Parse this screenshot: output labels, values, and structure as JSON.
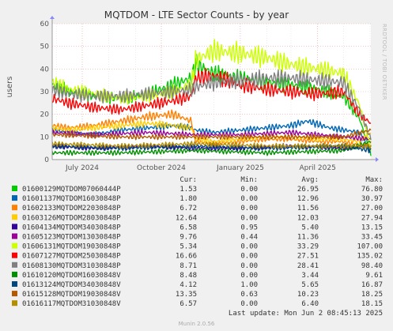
{
  "chart_data": {
    "type": "line",
    "title": "MQTDOM - LTE Sector Counts - by year",
    "ylabel": "users",
    "ylim": [
      0,
      60
    ],
    "yticks": [
      0,
      10,
      20,
      30,
      40,
      50,
      60
    ],
    "xlim": [
      "2024-05-27",
      "2025-06-02"
    ],
    "xticks": [
      {
        "date": "2024-07-01",
        "label": "July 2024"
      },
      {
        "date": "2024-10-01",
        "label": "October 2024"
      },
      {
        "date": "2025-01-01",
        "label": "January 2025"
      },
      {
        "date": "2025-04-01",
        "label": "April 2025"
      }
    ],
    "grid": true,
    "side_text": "RRDTOOL / TOBI OETIKER",
    "legend_headers": {
      "cur": "Cur:",
      "min": "Min:",
      "avg": "Avg:",
      "max": "Max:"
    },
    "series": [
      {
        "name": "01600129MQTDOM07060444P",
        "color": "#00cc00",
        "cur": "1.53",
        "min": "0.00",
        "avg": "26.95",
        "max": "76.80",
        "points": [
          [
            "2024-05-27",
            33
          ],
          [
            "2024-06-15",
            30
          ],
          [
            "2024-07-15",
            28
          ],
          [
            "2024-08-15",
            27
          ],
          [
            "2024-09-15",
            29
          ],
          [
            "2024-10-15",
            33
          ],
          [
            "2024-11-05",
            36
          ],
          [
            "2024-11-10",
            42
          ],
          [
            "2024-12-01",
            38
          ],
          [
            "2025-01-01",
            36
          ],
          [
            "2025-02-01",
            34
          ],
          [
            "2025-03-01",
            33
          ],
          [
            "2025-04-01",
            31
          ],
          [
            "2025-05-01",
            28
          ],
          [
            "2025-05-20",
            18
          ],
          [
            "2025-06-02",
            2
          ]
        ]
      },
      {
        "name": "01601137MQTDOM16030848P",
        "color": "#0066b3",
        "cur": "1.80",
        "min": "0.00",
        "avg": "12.96",
        "max": "30.97",
        "points": [
          [
            "2024-05-27",
            13
          ],
          [
            "2024-06-15",
            12
          ],
          [
            "2024-07-15",
            11
          ],
          [
            "2024-08-15",
            13
          ],
          [
            "2024-09-15",
            14
          ],
          [
            "2024-10-15",
            15
          ],
          [
            "2024-11-05",
            14
          ],
          [
            "2024-11-10",
            13
          ],
          [
            "2024-12-01",
            12
          ],
          [
            "2025-01-01",
            13
          ],
          [
            "2025-02-01",
            14
          ],
          [
            "2025-03-01",
            15
          ],
          [
            "2025-03-20",
            17
          ],
          [
            "2025-04-15",
            14
          ],
          [
            "2025-05-20",
            12
          ],
          [
            "2025-06-02",
            3
          ]
        ]
      },
      {
        "name": "01602133MQTDOM22030848P",
        "color": "#ff8000",
        "cur": "6.72",
        "min": "0.00",
        "avg": "11.56",
        "max": "27.00",
        "points": [
          [
            "2024-05-27",
            15
          ],
          [
            "2024-06-15",
            14
          ],
          [
            "2024-07-15",
            15
          ],
          [
            "2024-08-15",
            17
          ],
          [
            "2024-09-15",
            19
          ],
          [
            "2024-10-15",
            20
          ],
          [
            "2024-11-05",
            17
          ],
          [
            "2024-11-10",
            8
          ],
          [
            "2024-12-01",
            7
          ],
          [
            "2025-01-01",
            8
          ],
          [
            "2025-02-01",
            9
          ],
          [
            "2025-03-01",
            9
          ],
          [
            "2025-04-01",
            8
          ],
          [
            "2025-05-01",
            8
          ],
          [
            "2025-05-20",
            6
          ],
          [
            "2025-06-02",
            7
          ]
        ]
      },
      {
        "name": "01603126MQTDOM28030848P",
        "color": "#ffcc00",
        "cur": "12.64",
        "min": "0.00",
        "avg": "12.03",
        "max": "27.94",
        "points": [
          [
            "2024-05-27",
            14
          ],
          [
            "2024-06-15",
            13
          ],
          [
            "2024-07-15",
            14
          ],
          [
            "2024-08-15",
            15
          ],
          [
            "2024-09-15",
            16
          ],
          [
            "2024-10-15",
            15
          ],
          [
            "2024-11-05",
            14
          ],
          [
            "2024-11-10",
            9
          ],
          [
            "2024-12-01",
            8
          ],
          [
            "2025-01-01",
            9
          ],
          [
            "2025-02-01",
            10
          ],
          [
            "2025-03-01",
            10
          ],
          [
            "2025-04-01",
            9
          ],
          [
            "2025-05-01",
            9
          ],
          [
            "2025-05-20",
            8
          ],
          [
            "2025-06-02",
            12
          ]
        ]
      },
      {
        "name": "01604134MQTDOM34030848P",
        "color": "#330099",
        "cur": "6.58",
        "min": "0.95",
        "avg": "5.40",
        "max": "13.15",
        "points": [
          [
            "2024-05-27",
            6
          ],
          [
            "2024-07-15",
            5
          ],
          [
            "2024-09-15",
            6
          ],
          [
            "2024-11-10",
            5
          ],
          [
            "2025-01-01",
            5
          ],
          [
            "2025-03-01",
            6
          ],
          [
            "2025-05-01",
            5
          ],
          [
            "2025-06-02",
            6
          ]
        ]
      },
      {
        "name": "01605123MQTDOM13030848P",
        "color": "#990099",
        "cur": "9.76",
        "min": "0.44",
        "avg": "11.36",
        "max": "33.45",
        "points": [
          [
            "2024-05-27",
            12
          ],
          [
            "2024-07-15",
            11
          ],
          [
            "2024-09-15",
            12
          ],
          [
            "2024-11-10",
            11
          ],
          [
            "2025-01-01",
            11
          ],
          [
            "2025-03-01",
            12
          ],
          [
            "2025-05-01",
            10
          ],
          [
            "2025-06-02",
            9
          ]
        ]
      },
      {
        "name": "01606131MQTDOM19030848P",
        "color": "#ccff00",
        "cur": "5.34",
        "min": "0.00",
        "avg": "33.29",
        "max": "107.00",
        "points": [
          [
            "2024-05-27",
            34
          ],
          [
            "2024-06-15",
            31
          ],
          [
            "2024-07-15",
            29
          ],
          [
            "2024-08-15",
            27
          ],
          [
            "2024-09-15",
            28
          ],
          [
            "2024-10-15",
            30
          ],
          [
            "2024-11-05",
            33
          ],
          [
            "2024-11-10",
            44
          ],
          [
            "2024-12-01",
            48
          ],
          [
            "2025-01-01",
            47
          ],
          [
            "2025-02-01",
            45
          ],
          [
            "2025-03-01",
            42
          ],
          [
            "2025-04-01",
            40
          ],
          [
            "2025-05-01",
            38
          ],
          [
            "2025-05-20",
            24
          ],
          [
            "2025-06-02",
            5
          ]
        ]
      },
      {
        "name": "01607127MQTDOM25030848P",
        "color": "#ff0000",
        "cur": "16.66",
        "min": "0.00",
        "avg": "27.51",
        "max": "135.02",
        "points": [
          [
            "2024-05-27",
            27
          ],
          [
            "2024-06-15",
            25
          ],
          [
            "2024-07-15",
            23
          ],
          [
            "2024-08-15",
            22
          ],
          [
            "2024-09-15",
            24
          ],
          [
            "2024-10-15",
            26
          ],
          [
            "2024-11-05",
            28
          ],
          [
            "2024-11-10",
            36
          ],
          [
            "2024-12-01",
            37
          ],
          [
            "2025-01-01",
            33
          ],
          [
            "2025-02-01",
            31
          ],
          [
            "2025-03-01",
            30
          ],
          [
            "2025-04-01",
            29
          ],
          [
            "2025-05-01",
            30
          ],
          [
            "2025-05-20",
            20
          ],
          [
            "2025-06-02",
            16
          ]
        ]
      },
      {
        "name": "01608130MQTDOM31030848P",
        "color": "#808080",
        "cur": "8.71",
        "min": "0.00",
        "avg": "28.41",
        "max": "98.40",
        "points": [
          [
            "2024-05-27",
            31
          ],
          [
            "2024-06-15",
            29
          ],
          [
            "2024-07-15",
            28
          ],
          [
            "2024-08-15",
            28
          ],
          [
            "2024-09-15",
            29
          ],
          [
            "2024-10-15",
            30
          ],
          [
            "2024-11-05",
            31
          ],
          [
            "2024-11-10",
            32
          ],
          [
            "2024-12-01",
            34
          ],
          [
            "2025-01-01",
            35
          ],
          [
            "2025-02-01",
            36
          ],
          [
            "2025-03-01",
            36
          ],
          [
            "2025-04-01",
            35
          ],
          [
            "2025-05-01",
            34
          ],
          [
            "2025-05-20",
            22
          ],
          [
            "2025-06-02",
            9
          ]
        ]
      },
      {
        "name": "01610120MQTDOM16030848V",
        "color": "#008f00",
        "cur": "8.48",
        "min": "0.00",
        "avg": "3.44",
        "max": "9.61",
        "points": [
          [
            "2024-05-27",
            3
          ],
          [
            "2024-08-15",
            3
          ],
          [
            "2024-11-10",
            4
          ],
          [
            "2025-02-01",
            3
          ],
          [
            "2025-05-01",
            4
          ],
          [
            "2025-06-02",
            8
          ]
        ]
      },
      {
        "name": "01613124MQTDOM34030848V",
        "color": "#00487d",
        "cur": "4.12",
        "min": "1.00",
        "avg": "5.65",
        "max": "16.87",
        "points": [
          [
            "2024-05-27",
            6
          ],
          [
            "2024-08-15",
            5
          ],
          [
            "2024-11-10",
            6
          ],
          [
            "2025-02-01",
            5
          ],
          [
            "2025-05-01",
            6
          ],
          [
            "2025-06-02",
            4
          ]
        ]
      },
      {
        "name": "01615128MQTDOM19030848V",
        "color": "#b35a00",
        "cur": "13.35",
        "min": "0.63",
        "avg": "10.23",
        "max": "18.25",
        "points": [
          [
            "2024-05-27",
            11
          ],
          [
            "2024-08-15",
            10
          ],
          [
            "2024-11-10",
            10
          ],
          [
            "2025-02-01",
            10
          ],
          [
            "2025-05-01",
            10
          ],
          [
            "2025-06-02",
            13
          ]
        ]
      },
      {
        "name": "01616117MQTDOM31030848V",
        "color": "#b38f00",
        "cur": "6.57",
        "min": "0.00",
        "avg": "6.40",
        "max": "18.15",
        "points": [
          [
            "2024-05-27",
            7
          ],
          [
            "2024-08-15",
            6
          ],
          [
            "2024-11-10",
            7
          ],
          [
            "2025-02-01",
            6
          ],
          [
            "2025-05-01",
            6
          ],
          [
            "2025-06-02",
            6
          ]
        ]
      }
    ],
    "last_update": "Last update: Mon Jun  2 08:45:13 2025",
    "footer": "Munin 2.0.56"
  }
}
